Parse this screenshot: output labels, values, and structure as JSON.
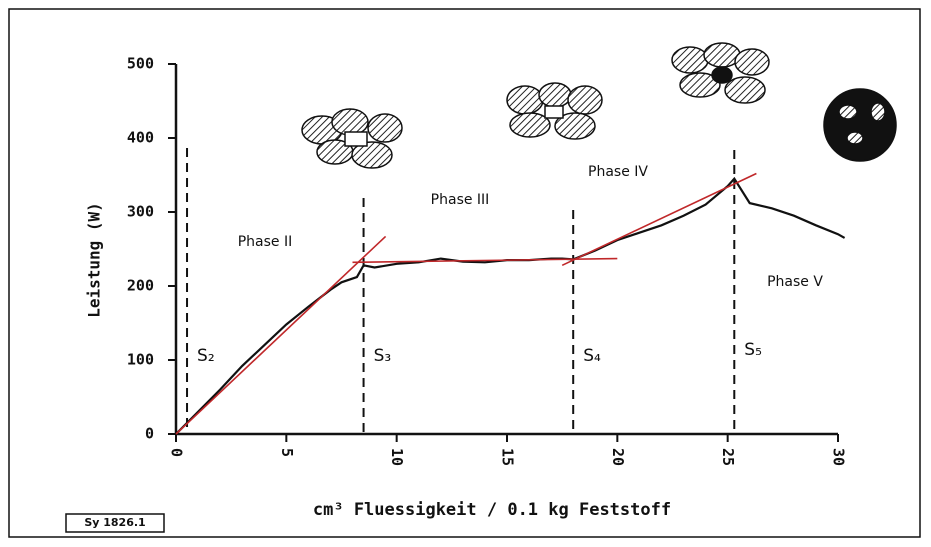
{
  "chart_data": {
    "type": "line",
    "x_label": "cm³ Fluessigkeit / 0.1 kg Feststoff",
    "y_label": "Leistung (W)",
    "source_label": "Sy 1826.1",
    "xlim": [
      0,
      30
    ],
    "ylim": [
      0,
      500
    ],
    "xticks": [
      0,
      5,
      10,
      15,
      20,
      25,
      30
    ],
    "yticks": [
      0,
      100,
      200,
      300,
      400,
      500
    ],
    "series": [
      {
        "color": "#111111",
        "x": [
          0,
          1,
          2,
          3,
          4,
          5,
          6,
          7,
          7.5,
          8.2,
          8.5,
          9,
          10,
          11,
          12,
          13,
          14,
          15,
          16,
          17,
          17.5,
          18,
          19,
          20,
          21,
          22,
          23,
          24,
          25,
          25.3,
          26,
          27,
          28,
          29,
          30,
          30.3
        ],
        "values": [
          0,
          30,
          60,
          92,
          120,
          148,
          172,
          195,
          205,
          212,
          228,
          225,
          230,
          232,
          237,
          233,
          232,
          235,
          235,
          237,
          237,
          236,
          248,
          262,
          272,
          282,
          295,
          310,
          335,
          345,
          312,
          305,
          295,
          282,
          270,
          265
        ]
      },
      {
        "color": "#c0282a",
        "x": [
          0,
          9.5
        ],
        "values": [
          0,
          267
        ]
      },
      {
        "color": "#c0282a",
        "x": [
          8,
          20
        ],
        "values": [
          232,
          237
        ]
      },
      {
        "color": "#c0282a",
        "x": [
          17.5,
          26.3
        ],
        "values": [
          228,
          352
        ]
      }
    ],
    "boundaries": [
      {
        "x": 0.5,
        "label": "S₂"
      },
      {
        "x": 8.5,
        "label": "S₃"
      },
      {
        "x": 18,
        "label": "S₄"
      },
      {
        "x": 25.3,
        "label": "S₅"
      }
    ],
    "phases": [
      "Phase II",
      "Phase III",
      "Phase IV",
      "Phase V"
    ]
  }
}
